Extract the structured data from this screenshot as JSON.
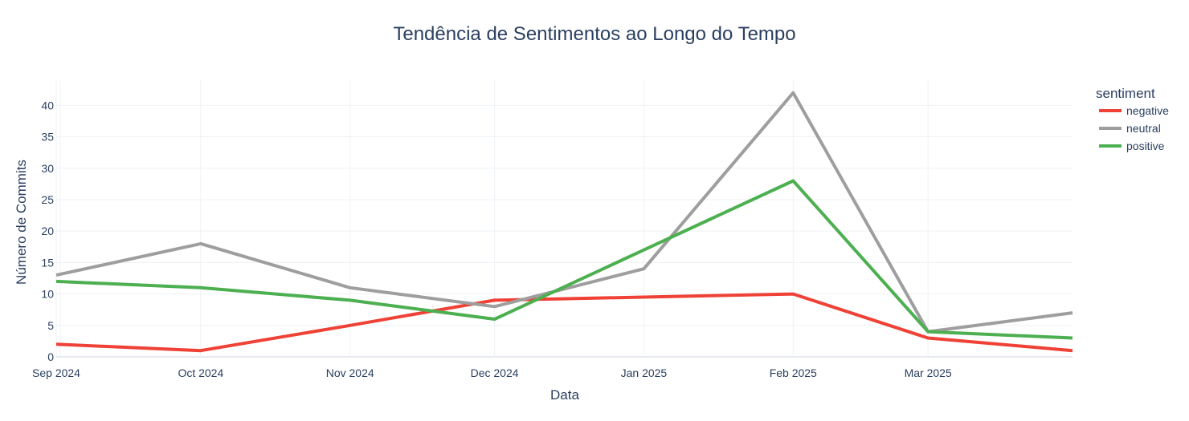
{
  "chart_data": {
    "type": "line",
    "title": "Tendência de Sentimentos ao Longo do Tempo",
    "xlabel": "Data",
    "ylabel": "Número de Commits",
    "x": [
      "2024-09-01",
      "2024-10-01",
      "2024-11-01",
      "2024-12-01",
      "2025-01-01",
      "2025-02-01",
      "2025-03-01",
      "2025-03-31"
    ],
    "x_ticks": [
      {
        "date": "2024-09-01",
        "label": "Sep 2024"
      },
      {
        "date": "2024-10-01",
        "label": "Oct 2024"
      },
      {
        "date": "2024-11-01",
        "label": "Nov 2024"
      },
      {
        "date": "2024-12-01",
        "label": "Dec 2024"
      },
      {
        "date": "2025-01-01",
        "label": "Jan 2025"
      },
      {
        "date": "2025-02-01",
        "label": "Feb 2025"
      },
      {
        "date": "2025-03-01",
        "label": "Mar 2025"
      }
    ],
    "xlim": [
      "2024-09-01",
      "2025-03-31"
    ],
    "ylim": [
      0,
      44
    ],
    "y_ticks": [
      0,
      5,
      10,
      15,
      20,
      25,
      30,
      35,
      40
    ],
    "grid": true,
    "legend": {
      "title": "sentiment",
      "placement": "right"
    },
    "series": [
      {
        "name": "negative",
        "color": "#ef4136",
        "points": [
          [
            "2024-09-01",
            2
          ],
          [
            "2024-10-01",
            1
          ],
          [
            "2024-11-01",
            5
          ],
          [
            "2024-12-01",
            9
          ],
          [
            "2025-01-01",
            9.5
          ],
          [
            "2025-02-01",
            10
          ],
          [
            "2025-03-01",
            3
          ],
          [
            "2025-03-31",
            1
          ]
        ]
      },
      {
        "name": "neutral",
        "color": "#9e9e9e",
        "points": [
          [
            "2024-09-01",
            13
          ],
          [
            "2024-10-01",
            18
          ],
          [
            "2024-11-01",
            11
          ],
          [
            "2024-12-01",
            8
          ],
          [
            "2025-01-01",
            14
          ],
          [
            "2025-02-01",
            42
          ],
          [
            "2025-03-01",
            4
          ],
          [
            "2025-03-31",
            7
          ]
        ]
      },
      {
        "name": "positive",
        "color": "#4caf50",
        "points": [
          [
            "2024-09-01",
            12
          ],
          [
            "2024-10-01",
            11
          ],
          [
            "2024-11-01",
            9
          ],
          [
            "2024-12-01",
            6
          ],
          [
            "2025-01-01",
            17
          ],
          [
            "2025-02-01",
            28
          ],
          [
            "2025-03-01",
            4
          ],
          [
            "2025-03-31",
            3
          ]
        ]
      }
    ]
  }
}
